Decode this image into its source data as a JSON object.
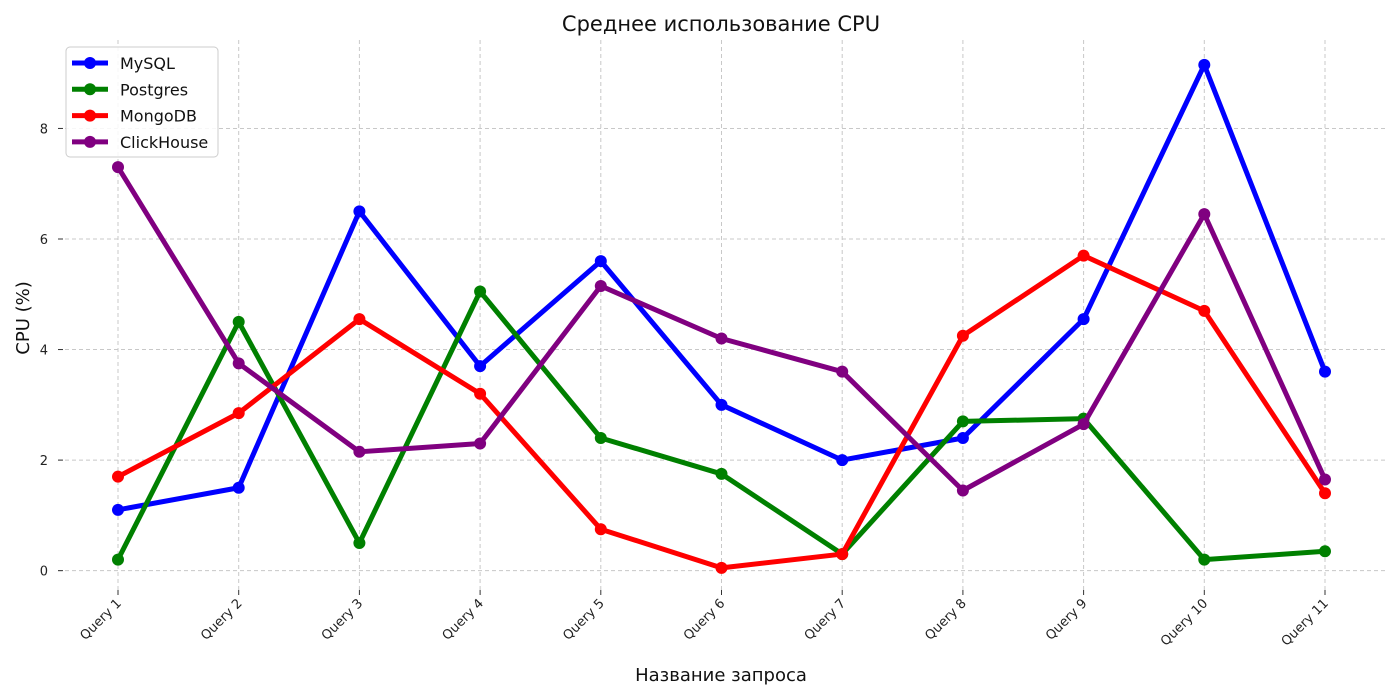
{
  "chart_data": {
    "type": "line",
    "title": "Среднее использование CPU",
    "xlabel": "Название запроса",
    "ylabel": "CPU (%)",
    "categories": [
      "Query 1",
      "Query 2",
      "Query 3",
      "Query 4",
      "Query 5",
      "Query 6",
      "Query 7",
      "Query 8",
      "Query 9",
      "Query 10",
      "Query 11"
    ],
    "ylim": [
      -0.35,
      9.6
    ],
    "yticks": [
      0,
      2,
      4,
      6,
      8
    ],
    "grid": true,
    "legend_position": "top-left",
    "series": [
      {
        "name": "MySQL",
        "color": "#0000ff",
        "values": [
          1.1,
          1.5,
          6.5,
          3.7,
          5.6,
          3.0,
          2.0,
          2.4,
          4.55,
          9.15,
          3.6
        ]
      },
      {
        "name": "Postgres",
        "color": "#008000",
        "values": [
          0.2,
          4.5,
          0.5,
          5.05,
          2.4,
          1.75,
          0.3,
          2.7,
          2.75,
          0.2,
          0.35
        ]
      },
      {
        "name": "MongoDB",
        "color": "#ff0000",
        "values": [
          1.7,
          2.85,
          4.55,
          3.2,
          0.75,
          0.05,
          0.3,
          4.25,
          5.7,
          4.7,
          1.4
        ]
      },
      {
        "name": "ClickHouse",
        "color": "#800080",
        "values": [
          7.3,
          3.75,
          2.15,
          2.3,
          5.15,
          4.2,
          3.6,
          1.45,
          2.65,
          6.45,
          1.65
        ]
      }
    ]
  }
}
